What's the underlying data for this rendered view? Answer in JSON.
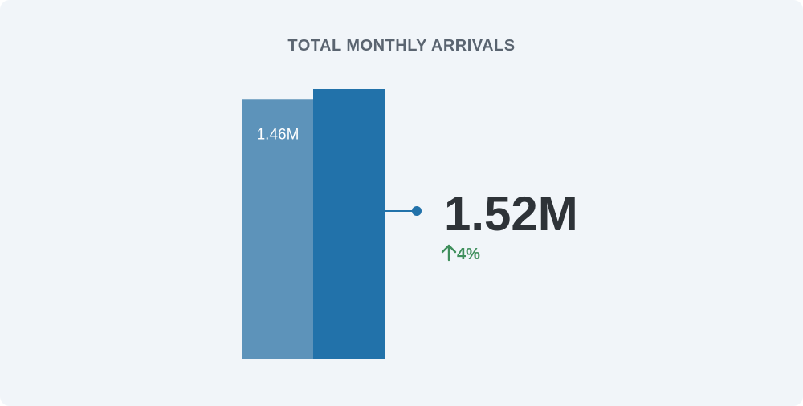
{
  "chart_data": {
    "type": "bar",
    "title": "TOTAL MONTHLY ARRIVALS",
    "values": [
      1.46,
      1.52
    ],
    "value_labels": [
      "1.46M",
      "1.52M"
    ],
    "change_label": "4%",
    "change_direction": "up",
    "ylim": [
      0,
      1.7
    ],
    "grid": false,
    "colors": {
      "previous": "#5d93ba",
      "current": "#2272aa",
      "text_dark": "#2e3338",
      "text_light": "#ffffff",
      "positive": "#3f8f5c",
      "title": "#5a6470"
    }
  }
}
